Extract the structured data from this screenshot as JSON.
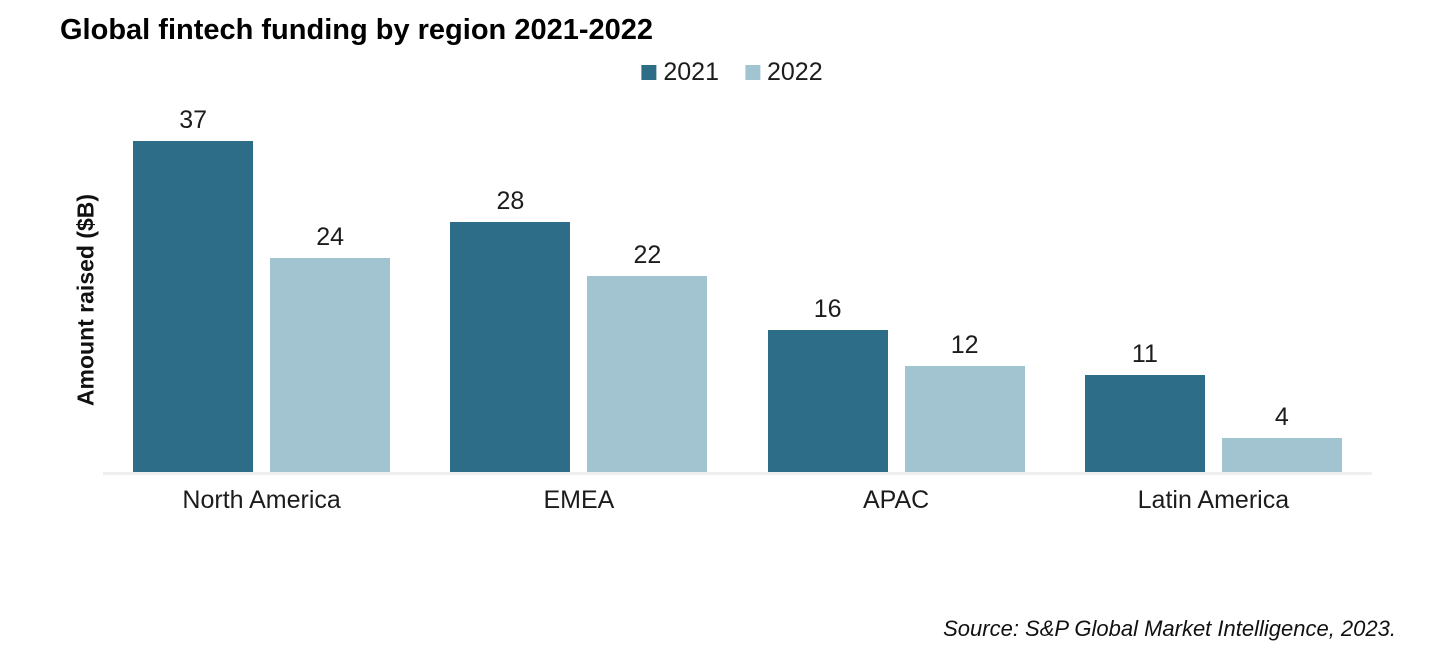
{
  "chart_data": {
    "type": "bar",
    "title": "Global fintech funding by region 2021-2022",
    "ylabel": "Amount raised ($B)",
    "xlabel": "",
    "categories": [
      "North America",
      "EMEA",
      "APAC",
      "Latin America"
    ],
    "series": [
      {
        "name": "2021",
        "color": "#2e6d87",
        "values": [
          37,
          28,
          16,
          11
        ]
      },
      {
        "name": "2022",
        "color": "#a2c4d0",
        "values": [
          24,
          22,
          12,
          4
        ]
      }
    ],
    "value_labels_shown": true,
    "ylim": [
      0,
      40
    ],
    "grid": false,
    "legend_position": "top-center",
    "axis_line_color": "#efefef",
    "text_color": "#1c1c1c"
  },
  "source": {
    "text": "Source: S&P Global Market Intelligence, 2023."
  }
}
